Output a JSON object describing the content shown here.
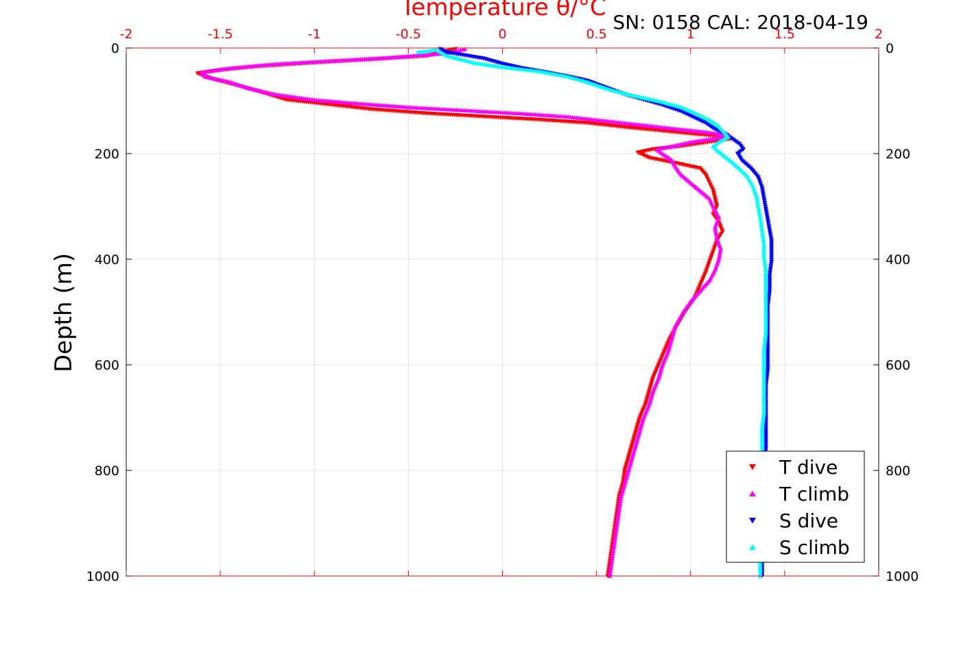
{
  "chart_data": {
    "type": "scatter",
    "title": "Temperature θ/°C",
    "subtitle": "SN: 0158  CAL: 2018-04-19",
    "ylabel": "Depth (m)",
    "xlim": [
      -2,
      2
    ],
    "ylim": [
      0,
      1000
    ],
    "y_reversed": true,
    "x_axis_position": "top",
    "grid": true,
    "legend_position": "bottom-right",
    "x_ticks": [
      "-2",
      "-1.5",
      "-1",
      "-0.5",
      "0",
      "0.5",
      "1",
      "1.5",
      "2"
    ],
    "x_tick_values": [
      -2,
      -1.5,
      -1,
      -0.5,
      0,
      0.5,
      1,
      1.5,
      2
    ],
    "y_ticks": [
      "0",
      "200",
      "400",
      "600",
      "800",
      "1000"
    ],
    "y_tick_values": [
      0,
      200,
      400,
      600,
      800,
      1000
    ],
    "colors": {
      "title": "#ff0000",
      "top_axis": "#ff0000",
      "axis": "#000000",
      "grid": "#e3e3e3"
    },
    "series": [
      {
        "name": "T dive",
        "marker": "triangle-down",
        "color": "#ff0000",
        "points": [
          [
            -0.25,
            2
          ],
          [
            -0.4,
            15
          ],
          [
            -0.7,
            22
          ],
          [
            -1.0,
            28
          ],
          [
            -1.3,
            35
          ],
          [
            -1.5,
            42
          ],
          [
            -1.62,
            48
          ],
          [
            -1.55,
            58
          ],
          [
            -1.42,
            70
          ],
          [
            -1.3,
            82
          ],
          [
            -1.15,
            98
          ],
          [
            -0.9,
            108
          ],
          [
            -0.7,
            116
          ],
          [
            -0.4,
            124
          ],
          [
            -0.1,
            130
          ],
          [
            0.2,
            136
          ],
          [
            0.45,
            142
          ],
          [
            0.65,
            150
          ],
          [
            0.88,
            158
          ],
          [
            1.05,
            164
          ],
          [
            1.18,
            168
          ],
          [
            1.22,
            172
          ],
          [
            1.1,
            178
          ],
          [
            0.95,
            186
          ],
          [
            0.8,
            192
          ],
          [
            0.72,
            198
          ],
          [
            0.78,
            208
          ],
          [
            0.92,
            218
          ],
          [
            1.05,
            228
          ],
          [
            1.08,
            240
          ],
          [
            1.1,
            255
          ],
          [
            1.12,
            270
          ],
          [
            1.13,
            285
          ],
          [
            1.14,
            300
          ],
          [
            1.12,
            315
          ],
          [
            1.15,
            330
          ],
          [
            1.17,
            348
          ],
          [
            1.14,
            365
          ],
          [
            1.12,
            385
          ],
          [
            1.1,
            405
          ],
          [
            1.08,
            425
          ],
          [
            1.05,
            450
          ],
          [
            1.02,
            475
          ],
          [
            0.97,
            500
          ],
          [
            0.93,
            525
          ],
          [
            0.89,
            550
          ],
          [
            0.86,
            575
          ],
          [
            0.83,
            600
          ],
          [
            0.8,
            625
          ],
          [
            0.78,
            650
          ],
          [
            0.76,
            675
          ],
          [
            0.73,
            700
          ],
          [
            0.71,
            725
          ],
          [
            0.69,
            750
          ],
          [
            0.67,
            775
          ],
          [
            0.65,
            800
          ],
          [
            0.64,
            825
          ],
          [
            0.62,
            850
          ],
          [
            0.61,
            875
          ],
          [
            0.6,
            900
          ],
          [
            0.59,
            925
          ],
          [
            0.58,
            950
          ],
          [
            0.57,
            975
          ],
          [
            0.56,
            1000
          ]
        ]
      },
      {
        "name": "T climb",
        "marker": "triangle-up",
        "color": "#ff00ff",
        "points": [
          [
            -0.2,
            2
          ],
          [
            -0.3,
            10
          ],
          [
            -0.6,
            18
          ],
          [
            -0.9,
            24
          ],
          [
            -1.2,
            30
          ],
          [
            -1.45,
            38
          ],
          [
            -1.6,
            46
          ],
          [
            -1.58,
            54
          ],
          [
            -1.45,
            64
          ],
          [
            -1.35,
            76
          ],
          [
            -1.2,
            88
          ],
          [
            -1.0,
            98
          ],
          [
            -0.8,
            104
          ],
          [
            -0.5,
            112
          ],
          [
            -0.2,
            118
          ],
          [
            0.1,
            124
          ],
          [
            0.35,
            130
          ],
          [
            0.55,
            138
          ],
          [
            0.75,
            146
          ],
          [
            0.95,
            154
          ],
          [
            1.1,
            160
          ],
          [
            1.2,
            164
          ],
          [
            1.15,
            170
          ],
          [
            1.0,
            178
          ],
          [
            0.9,
            186
          ],
          [
            0.82,
            192
          ],
          [
            0.85,
            200
          ],
          [
            0.9,
            212
          ],
          [
            0.92,
            225
          ],
          [
            0.95,
            240
          ],
          [
            1.0,
            255
          ],
          [
            1.05,
            270
          ],
          [
            1.1,
            285
          ],
          [
            1.12,
            300
          ],
          [
            1.15,
            320
          ],
          [
            1.13,
            340
          ],
          [
            1.14,
            360
          ],
          [
            1.16,
            380
          ],
          [
            1.15,
            400
          ],
          [
            1.13,
            420
          ],
          [
            1.1,
            440
          ],
          [
            1.05,
            460
          ],
          [
            1.0,
            480
          ],
          [
            0.96,
            500
          ],
          [
            0.92,
            525
          ],
          [
            0.9,
            550
          ],
          [
            0.88,
            575
          ],
          [
            0.85,
            600
          ],
          [
            0.83,
            625
          ],
          [
            0.8,
            650
          ],
          [
            0.78,
            675
          ],
          [
            0.75,
            700
          ],
          [
            0.73,
            725
          ],
          [
            0.71,
            750
          ],
          [
            0.69,
            775
          ],
          [
            0.67,
            800
          ],
          [
            0.65,
            825
          ],
          [
            0.63,
            850
          ],
          [
            0.62,
            875
          ],
          [
            0.61,
            900
          ],
          [
            0.6,
            925
          ],
          [
            0.59,
            950
          ],
          [
            0.58,
            975
          ],
          [
            0.57,
            1000
          ]
        ]
      },
      {
        "name": "S dive",
        "marker": "triangle-down",
        "color": "#0000ff",
        "points": [
          [
            -0.33,
            2
          ],
          [
            -0.3,
            8
          ],
          [
            -0.2,
            14
          ],
          [
            -0.1,
            20
          ],
          [
            0.0,
            30
          ],
          [
            0.1,
            38
          ],
          [
            0.2,
            44
          ],
          [
            0.35,
            54
          ],
          [
            0.45,
            62
          ],
          [
            0.55,
            75
          ],
          [
            0.65,
            88
          ],
          [
            0.75,
            98
          ],
          [
            0.85,
            108
          ],
          [
            0.95,
            120
          ],
          [
            1.02,
            132
          ],
          [
            1.08,
            142
          ],
          [
            1.12,
            152
          ],
          [
            1.18,
            162
          ],
          [
            1.22,
            172
          ],
          [
            1.26,
            182
          ],
          [
            1.28,
            192
          ],
          [
            1.25,
            200
          ],
          [
            1.27,
            212
          ],
          [
            1.32,
            228
          ],
          [
            1.36,
            245
          ],
          [
            1.38,
            265
          ],
          [
            1.39,
            285
          ],
          [
            1.4,
            305
          ],
          [
            1.41,
            325
          ],
          [
            1.42,
            345
          ],
          [
            1.43,
            365
          ],
          [
            1.43,
            385
          ],
          [
            1.43,
            405
          ],
          [
            1.42,
            430
          ],
          [
            1.42,
            460
          ],
          [
            1.41,
            490
          ],
          [
            1.41,
            520
          ],
          [
            1.41,
            550
          ],
          [
            1.41,
            580
          ],
          [
            1.41,
            610
          ],
          [
            1.4,
            640
          ],
          [
            1.4,
            670
          ],
          [
            1.4,
            700
          ],
          [
            1.4,
            730
          ],
          [
            1.4,
            760
          ],
          [
            1.39,
            790
          ],
          [
            1.39,
            820
          ],
          [
            1.39,
            850
          ],
          [
            1.39,
            880
          ],
          [
            1.39,
            910
          ],
          [
            1.38,
            940
          ],
          [
            1.38,
            970
          ],
          [
            1.38,
            1000
          ]
        ]
      },
      {
        "name": "S climb",
        "marker": "triangle-up",
        "color": "#00ffff",
        "points": [
          [
            -0.45,
            8
          ],
          [
            -0.35,
            3
          ],
          [
            -0.3,
            14
          ],
          [
            -0.15,
            28
          ],
          [
            0.0,
            36
          ],
          [
            0.2,
            44
          ],
          [
            0.35,
            54
          ],
          [
            0.45,
            64
          ],
          [
            0.55,
            76
          ],
          [
            0.65,
            86
          ],
          [
            0.75,
            94
          ],
          [
            0.85,
            102
          ],
          [
            0.95,
            112
          ],
          [
            1.03,
            124
          ],
          [
            1.1,
            136
          ],
          [
            1.15,
            148
          ],
          [
            1.18,
            160
          ],
          [
            1.2,
            168
          ],
          [
            1.15,
            178
          ],
          [
            1.12,
            186
          ],
          [
            1.15,
            196
          ],
          [
            1.2,
            210
          ],
          [
            1.25,
            225
          ],
          [
            1.3,
            242
          ],
          [
            1.33,
            260
          ],
          [
            1.35,
            280
          ],
          [
            1.36,
            300
          ],
          [
            1.37,
            320
          ],
          [
            1.38,
            345
          ],
          [
            1.39,
            370
          ],
          [
            1.39,
            395
          ],
          [
            1.4,
            420
          ],
          [
            1.4,
            450
          ],
          [
            1.4,
            480
          ],
          [
            1.4,
            510
          ],
          [
            1.4,
            540
          ],
          [
            1.39,
            570
          ],
          [
            1.39,
            600
          ],
          [
            1.39,
            630
          ],
          [
            1.39,
            660
          ],
          [
            1.39,
            690
          ],
          [
            1.38,
            720
          ],
          [
            1.38,
            750
          ],
          [
            1.38,
            780
          ],
          [
            1.38,
            810
          ],
          [
            1.38,
            840
          ],
          [
            1.38,
            870
          ],
          [
            1.37,
            900
          ],
          [
            1.37,
            930
          ],
          [
            1.37,
            960
          ],
          [
            1.37,
            1000
          ]
        ]
      }
    ]
  }
}
